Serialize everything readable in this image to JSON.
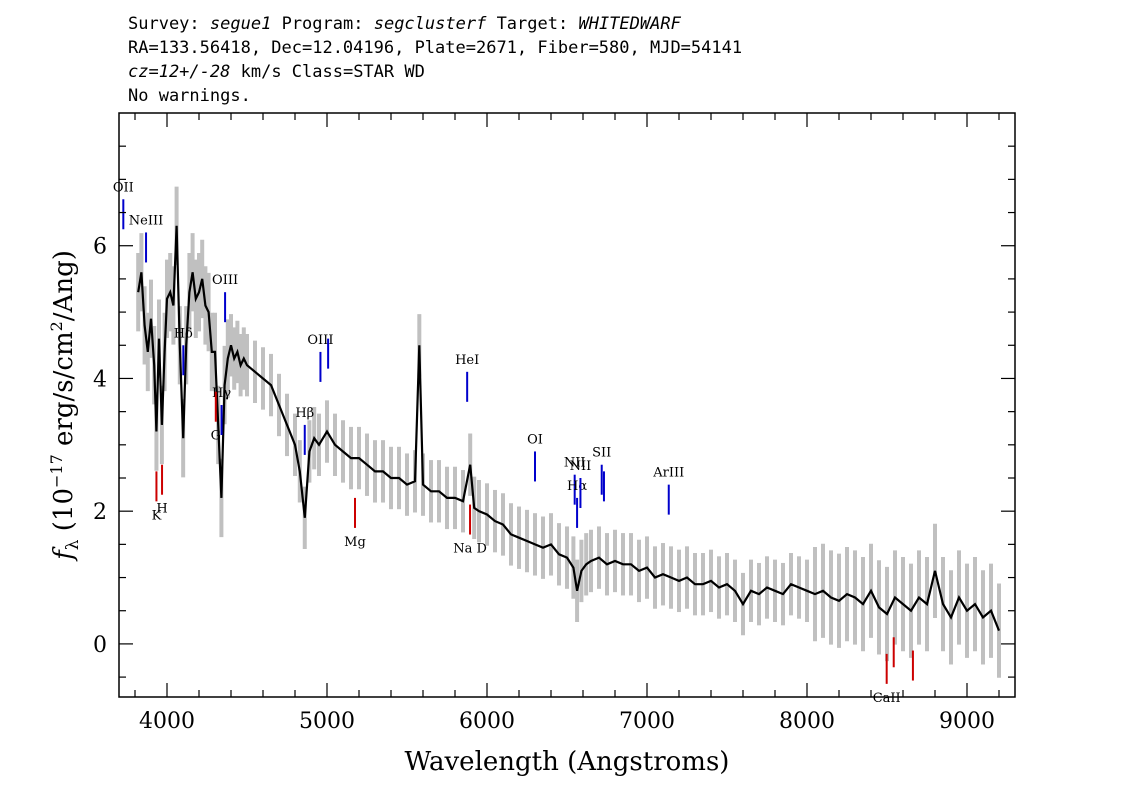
{
  "header": {
    "survey_label": "Survey:",
    "survey": "segue1",
    "program_label": "Program:",
    "program": "segclusterf",
    "target_label": "Target:",
    "target": "WHITEDWARF",
    "line2": "RA=133.56418, Dec=12.04196, Plate=2671, Fiber=580, MJD=54141",
    "cz": "cz=12+/-28",
    "line3_rest": "km/s Class=STAR WD",
    "line4": "No warnings."
  },
  "chart_data": {
    "type": "line",
    "xlabel": "Wavelength (Angstroms)",
    "ylabel": "f_λ (10^-17 erg/s/cm^2/Ang)",
    "xlim": [
      3700,
      9300
    ],
    "ylim": [
      -0.8,
      8.0
    ],
    "x_ticks": [
      4000,
      5000,
      6000,
      7000,
      8000,
      9000
    ],
    "y_ticks": [
      0,
      2,
      4,
      6
    ],
    "colors": {
      "flux": "#000000",
      "error_band": "#c0c0c0",
      "emission": "#0000cc",
      "absorption": "#cc0000"
    },
    "series": [
      {
        "x": [
          3820,
          3840,
          3860,
          3880,
          3900,
          3920,
          3934,
          3950,
          3968,
          3985,
          4000,
          4020,
          4040,
          4060,
          4080,
          4101,
          4120,
          4140,
          4160,
          4180,
          4200,
          4220,
          4240,
          4260,
          4280,
          4300,
          4320,
          4340,
          4360,
          4380,
          4400,
          4420,
          4440,
          4460,
          4480,
          4500,
          4550,
          4600,
          4650,
          4700,
          4750,
          4800,
          4830,
          4861,
          4890,
          4920,
          4950,
          5000,
          5050,
          5100,
          5150,
          5200,
          5250,
          5300,
          5350,
          5400,
          5450,
          5500,
          5550,
          5577,
          5600,
          5650,
          5700,
          5750,
          5800,
          5850,
          5895,
          5920,
          5950,
          6000,
          6050,
          6100,
          6150,
          6200,
          6250,
          6300,
          6350,
          6400,
          6450,
          6500,
          6540,
          6563,
          6590,
          6620,
          6650,
          6700,
          6750,
          6800,
          6850,
          6900,
          6950,
          7000,
          7050,
          7100,
          7150,
          7200,
          7250,
          7300,
          7350,
          7400,
          7450,
          7500,
          7550,
          7600,
          7650,
          7700,
          7750,
          7800,
          7850,
          7900,
          7950,
          8000,
          8050,
          8100,
          8150,
          8200,
          8250,
          8300,
          8350,
          8400,
          8450,
          8500,
          8550,
          8600,
          8650,
          8700,
          8750,
          8800,
          8850,
          8900,
          8950,
          9000,
          9050,
          9100,
          9150,
          9200
        ],
        "y": [
          5.3,
          5.6,
          4.8,
          4.4,
          4.9,
          4.2,
          3.2,
          4.6,
          3.3,
          4.4,
          5.2,
          5.3,
          5.1,
          6.3,
          4.5,
          3.1,
          4.5,
          5.3,
          5.6,
          5.2,
          5.3,
          5.5,
          5.1,
          5.0,
          4.4,
          4.4,
          3.3,
          2.2,
          3.9,
          4.3,
          4.5,
          4.3,
          4.4,
          4.2,
          4.3,
          4.2,
          4.1,
          4.0,
          3.9,
          3.6,
          3.3,
          3.0,
          2.6,
          1.9,
          2.9,
          3.1,
          3.0,
          3.2,
          3.0,
          2.9,
          2.8,
          2.8,
          2.7,
          2.6,
          2.6,
          2.5,
          2.5,
          2.4,
          2.45,
          4.5,
          2.4,
          2.3,
          2.3,
          2.2,
          2.2,
          2.15,
          2.7,
          2.05,
          2.0,
          1.95,
          1.85,
          1.8,
          1.65,
          1.6,
          1.55,
          1.5,
          1.45,
          1.5,
          1.35,
          1.3,
          1.15,
          0.8,
          1.1,
          1.2,
          1.25,
          1.3,
          1.2,
          1.25,
          1.2,
          1.2,
          1.1,
          1.15,
          1.0,
          1.05,
          1.0,
          0.95,
          1.0,
          0.9,
          0.9,
          0.95,
          0.85,
          0.9,
          0.8,
          0.6,
          0.8,
          0.75,
          0.85,
          0.8,
          0.75,
          0.9,
          0.85,
          0.8,
          0.75,
          0.8,
          0.7,
          0.65,
          0.75,
          0.7,
          0.6,
          0.8,
          0.55,
          0.45,
          0.7,
          0.6,
          0.5,
          0.7,
          0.6,
          1.1,
          0.6,
          0.4,
          0.7,
          0.5,
          0.6,
          0.4,
          0.5,
          0.2
        ]
      }
    ],
    "lines": [
      {
        "label": "OII",
        "x": 3727,
        "kind": "emission"
      },
      {
        "label": "NeIII",
        "x": 3869,
        "kind": "emission"
      },
      {
        "label": "Hδ",
        "x": 4102,
        "kind": "emission"
      },
      {
        "label": "Hγ",
        "x": 4341,
        "kind": "emission"
      },
      {
        "label": "OIII",
        "x": 4363,
        "kind": "emission"
      },
      {
        "label": "Hβ",
        "x": 4861,
        "kind": "emission"
      },
      {
        "label": "OIII",
        "x": 4959,
        "kind": "emission"
      },
      {
        "label": "",
        "x": 5007,
        "kind": "emission"
      },
      {
        "label": "HeI",
        "x": 5876,
        "kind": "emission"
      },
      {
        "label": "OI",
        "x": 6300,
        "kind": "emission"
      },
      {
        "label": "NII",
        "x": 6548,
        "kind": "emission"
      },
      {
        "label": "Hα",
        "x": 6563,
        "kind": "emission"
      },
      {
        "label": "NII",
        "x": 6584,
        "kind": "emission"
      },
      {
        "label": "SII",
        "x": 6717,
        "kind": "emission"
      },
      {
        "label": "",
        "x": 6731,
        "kind": "emission"
      },
      {
        "label": "ArIII",
        "x": 7136,
        "kind": "emission"
      },
      {
        "label": "K",
        "x": 3934,
        "kind": "absorption"
      },
      {
        "label": "H",
        "x": 3969,
        "kind": "absorption"
      },
      {
        "label": "G",
        "x": 4305,
        "kind": "absorption"
      },
      {
        "label": "Mg",
        "x": 5175,
        "kind": "absorption"
      },
      {
        "label": "Na D",
        "x": 5894,
        "kind": "absorption"
      },
      {
        "label": "CaII",
        "x": 8498,
        "kind": "absorption"
      },
      {
        "label": "",
        "x": 8542,
        "kind": "absorption"
      },
      {
        "label": "",
        "x": 8662,
        "kind": "absorption"
      }
    ]
  }
}
